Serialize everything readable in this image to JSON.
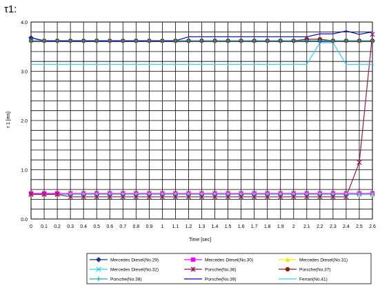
{
  "corner_label": "τ1:",
  "chart_data": {
    "type": "line",
    "title": "",
    "xlabel": "Time [sec]",
    "ylabel": "τ 1 [ms]",
    "xlim": [
      0,
      2.6
    ],
    "ylim": [
      0,
      4.0
    ],
    "grid": true,
    "legend_position": "bottom",
    "x_ticks": [
      "0",
      "0.1",
      "0.2",
      "0.3",
      "0.4",
      "0.5",
      "0.6",
      "0.7",
      "0.8",
      "0.9",
      "1",
      "1.1",
      "1.2",
      "1.3",
      "1.4",
      "1.5",
      "1.6",
      "1.7",
      "1.8",
      "1.9",
      "2",
      "2.1",
      "2.2",
      "2.3",
      "2.4",
      "2.5",
      "2.6"
    ],
    "y_ticks": [
      "0.0",
      "1.0",
      "2.0",
      "3.0",
      "4.0"
    ],
    "x": [
      0,
      0.1,
      0.2,
      0.3,
      0.4,
      0.5,
      0.6,
      0.7,
      0.8,
      0.9,
      1.0,
      1.1,
      1.2,
      1.3,
      1.4,
      1.5,
      1.6,
      1.7,
      1.8,
      1.9,
      2.0,
      2.1,
      2.2,
      2.3,
      2.4,
      2.5,
      2.6
    ],
    "series": [
      {
        "name": "Mercedes Diesel(No.29)",
        "color": "#1f2e8c",
        "marker": "diamond",
        "values": [
          3.68,
          3.62,
          3.62,
          3.62,
          3.62,
          3.62,
          3.62,
          3.62,
          3.62,
          3.62,
          3.62,
          3.62,
          3.62,
          3.62,
          3.62,
          3.62,
          3.62,
          3.62,
          3.62,
          3.62,
          3.62,
          3.62,
          3.62,
          3.62,
          3.62,
          3.62,
          3.62
        ]
      },
      {
        "name": "Mercedes Diesel(No.30)",
        "color": "#ff00ff",
        "marker": "square",
        "values": [
          0.52,
          0.52,
          0.52,
          0.52,
          0.52,
          0.52,
          0.52,
          0.52,
          0.52,
          0.52,
          0.52,
          0.52,
          0.52,
          0.52,
          0.52,
          0.52,
          0.52,
          0.52,
          0.52,
          0.52,
          0.52,
          0.52,
          0.52,
          0.52,
          0.52,
          0.52,
          0.52
        ]
      },
      {
        "name": "Mercedes Diesel(No.31)",
        "color": "#f2e600",
        "marker": "triangle",
        "values": [
          0.5,
          0.5,
          0.5,
          0.5,
          0.5,
          0.5,
          0.5,
          0.5,
          0.5,
          0.5,
          0.5,
          0.5,
          0.5,
          0.5,
          0.5,
          0.5,
          0.5,
          0.5,
          0.5,
          0.5,
          0.5,
          0.5,
          0.5,
          0.5,
          0.5,
          0.5,
          0.5
        ]
      },
      {
        "name": "Mercedes Diesel(No.32)",
        "color": "#33ccee",
        "marker": "x",
        "values": [
          0.5,
          0.5,
          0.5,
          0.5,
          0.5,
          0.5,
          0.5,
          0.5,
          0.5,
          0.5,
          0.5,
          0.5,
          0.5,
          0.5,
          0.5,
          0.5,
          0.5,
          0.5,
          0.5,
          0.5,
          0.5,
          0.5,
          0.5,
          0.5,
          0.5,
          0.5,
          0.5
        ]
      },
      {
        "name": "Porsche(No.36)",
        "color": "#8b1a5a",
        "marker": "star",
        "values": [
          0.5,
          0.5,
          0.5,
          0.45,
          0.45,
          0.45,
          0.45,
          0.45,
          0.45,
          0.45,
          0.45,
          0.45,
          0.45,
          0.45,
          0.45,
          0.45,
          0.45,
          0.45,
          0.45,
          0.45,
          0.45,
          0.45,
          0.45,
          0.45,
          0.45,
          1.15,
          3.75
        ]
      },
      {
        "name": "Porsche(No.37)",
        "color": "#8b1a1a",
        "marker": "circle",
        "values": [
          3.62,
          3.62,
          3.62,
          3.62,
          3.62,
          3.62,
          3.62,
          3.62,
          3.62,
          3.62,
          3.62,
          3.62,
          3.62,
          3.62,
          3.62,
          3.62,
          3.62,
          3.62,
          3.62,
          3.62,
          3.62,
          3.65,
          3.65,
          3.62,
          3.62,
          3.62,
          3.62
        ]
      },
      {
        "name": "Porsche(No.38)",
        "color": "#1aa6a6",
        "marker": "plus",
        "values": [
          3.62,
          3.62,
          3.62,
          3.62,
          3.62,
          3.62,
          3.62,
          3.62,
          3.62,
          3.62,
          3.62,
          3.62,
          3.62,
          3.62,
          3.62,
          3.62,
          3.62,
          3.62,
          3.62,
          3.62,
          3.62,
          3.62,
          3.62,
          3.62,
          3.62,
          3.62,
          3.62
        ]
      },
      {
        "name": "Porsche(No.39)",
        "color": "#0000cc",
        "marker": "none",
        "values": [
          3.68,
          3.62,
          3.62,
          3.62,
          3.62,
          3.62,
          3.62,
          3.62,
          3.62,
          3.62,
          3.62,
          3.62,
          3.7,
          3.7,
          3.7,
          3.7,
          3.7,
          3.7,
          3.7,
          3.7,
          3.7,
          3.7,
          3.76,
          3.76,
          3.82,
          3.75,
          3.8
        ]
      },
      {
        "name": "Ferrari(No.41)",
        "color": "#33ccff",
        "marker": "none",
        "values": [
          3.14,
          3.14,
          3.14,
          3.14,
          3.14,
          3.14,
          3.14,
          3.14,
          3.14,
          3.14,
          3.14,
          3.14,
          3.14,
          3.14,
          3.14,
          3.14,
          3.14,
          3.14,
          3.14,
          3.14,
          3.14,
          3.14,
          3.58,
          3.58,
          3.14,
          3.14,
          3.14
        ]
      }
    ]
  }
}
